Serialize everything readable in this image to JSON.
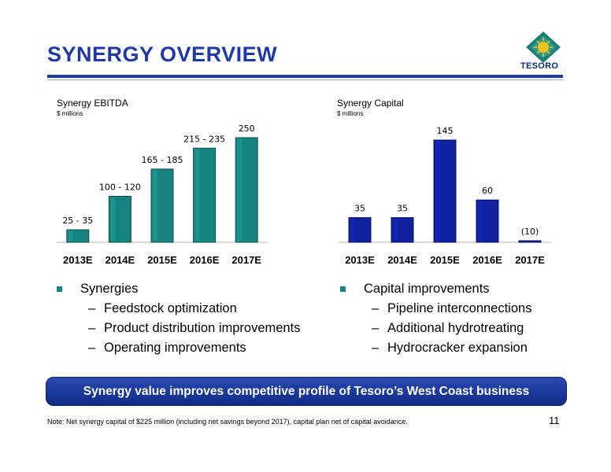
{
  "slide": {
    "title": "SYNERGY OVERVIEW",
    "logo_text": "TESORO",
    "page_number": "11"
  },
  "chart_data": [
    {
      "type": "bar",
      "title": "Synergy EBITDA",
      "subtitle": "$ millions",
      "categories": [
        "2013E",
        "2014E",
        "2015E",
        "2016E",
        "2017E"
      ],
      "values": [
        30,
        110,
        175,
        225,
        250
      ],
      "labels": [
        "25 - 35",
        "100 - 120",
        "165 - 185",
        "215 - 235",
        "250"
      ],
      "color": "#17837e",
      "ylim": [
        0,
        250
      ]
    },
    {
      "type": "bar",
      "title": "Synergy Capital",
      "subtitle": "$ millions",
      "categories": [
        "2013E",
        "2014E",
        "2015E",
        "2016E",
        "2017E"
      ],
      "values": [
        35,
        35,
        145,
        60,
        -10
      ],
      "labels": [
        "35",
        "35",
        "145",
        "60",
        "(10)"
      ],
      "color": "#10209e",
      "ylim": [
        -10,
        145
      ]
    }
  ],
  "bullets_left": {
    "main": "Synergies",
    "subs": [
      "Feedstock optimization",
      "Product distribution improvements",
      "Operating improvements"
    ]
  },
  "bullets_right": {
    "main": "Capital improvements",
    "subs": [
      "Pipeline interconnections",
      "Additional hydrotreating",
      "Hydrocracker expansion"
    ]
  },
  "banner": "Synergy value improves competitive profile of Tesoro’s West Coast business",
  "note": "Note: Net synergy capital of $225 million (including net savings beyond 2017), capital plan net of capital avoidance.",
  "dash": "–"
}
